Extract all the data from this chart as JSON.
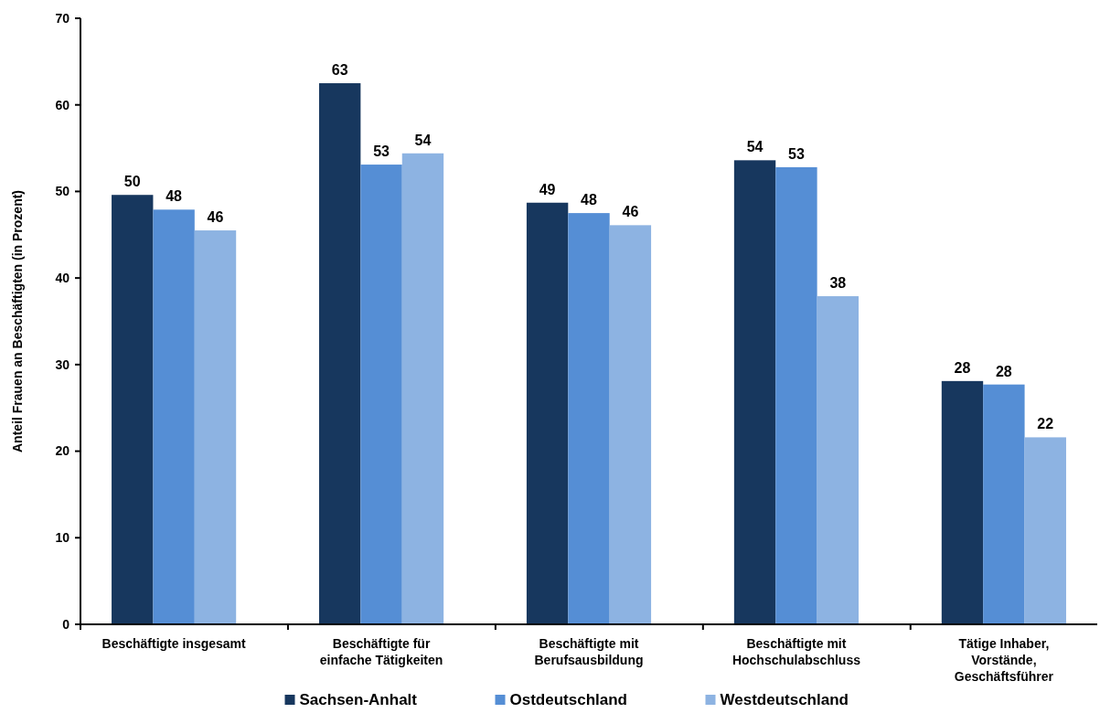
{
  "chart_data": {
    "type": "bar",
    "ylabel": "Anteil Frauen an Beschäftigten (in Prozent)",
    "categories": [
      "Beschäftigte insgesamt",
      "Beschäftigte für einfache Tätigkeiten",
      "Beschäftigte mit Berufsausbildung",
      "Beschäftigte mit Hochschulabschluss",
      "Tätige Inhaber, Vorstände, Geschäftsführer"
    ],
    "series": [
      {
        "name": "Sachsen-Anhalt",
        "color": "#17375e",
        "values": [
          49.6,
          62.5,
          48.7,
          53.6,
          28.1
        ],
        "value_labels": [
          "50",
          "63",
          "49",
          "54",
          "28"
        ]
      },
      {
        "name": "Ostdeutschland",
        "color": "#558ed5",
        "values": [
          47.9,
          53.1,
          47.5,
          52.8,
          27.7
        ],
        "value_labels": [
          "48",
          "53",
          "48",
          "53",
          "28"
        ]
      },
      {
        "name": "Westdeutschland",
        "color": "#8db3e2",
        "values": [
          45.5,
          54.4,
          46.1,
          37.9,
          21.6
        ],
        "value_labels": [
          "46",
          "54",
          "46",
          "38",
          "22"
        ]
      }
    ],
    "ylim": [
      0,
      70
    ],
    "yticks": [
      0,
      10,
      20,
      30,
      40,
      50,
      60,
      70
    ],
    "grid": false,
    "legend": "bottom"
  }
}
